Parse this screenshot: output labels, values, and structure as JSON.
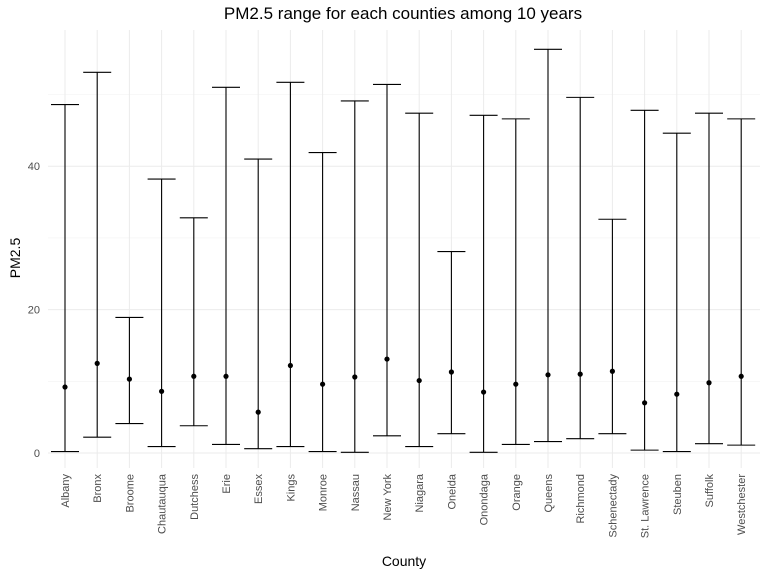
{
  "chart_data": {
    "type": "errorbar",
    "title": "PM2.5 range for each counties among 10 years",
    "xlabel": "County",
    "ylabel": "PM2.5",
    "ylim": [
      -2,
      58
    ],
    "yticks": [
      0,
      20,
      40
    ],
    "grid": true,
    "categories": [
      "Albany",
      "Bronx",
      "Broome",
      "Chautauqua",
      "Dutchess",
      "Erie",
      "Essex",
      "Kings",
      "Monroe",
      "Nassau",
      "New York",
      "Niagara",
      "Oneida",
      "Onondaga",
      "Orange",
      "Queens",
      "Richmond",
      "Schenectady",
      "St. Lawrence",
      "Steuben",
      "Suffolk",
      "Westchester"
    ],
    "series": [
      {
        "min": [
          0.2,
          2.2,
          4.1,
          0.9,
          3.8,
          1.2,
          0.6,
          0.9,
          0.2,
          0.1,
          2.4,
          0.9,
          2.7,
          0.1,
          1.2,
          1.6,
          2.0,
          2.7,
          0.4,
          0.2,
          1.3,
          1.1
        ],
        "mean": [
          9.2,
          12.5,
          10.3,
          8.6,
          10.7,
          10.7,
          5.7,
          12.2,
          9.6,
          10.6,
          13.1,
          10.1,
          11.3,
          8.5,
          9.6,
          10.9,
          11.0,
          11.4,
          7.0,
          8.2,
          9.8,
          10.7
        ],
        "max": [
          48.6,
          53.1,
          18.9,
          38.2,
          32.8,
          51.0,
          41.0,
          51.7,
          41.9,
          49.1,
          51.4,
          47.4,
          28.1,
          47.1,
          46.6,
          56.3,
          49.6,
          32.6,
          47.8,
          44.6,
          47.4,
          46.6
        ]
      }
    ]
  }
}
